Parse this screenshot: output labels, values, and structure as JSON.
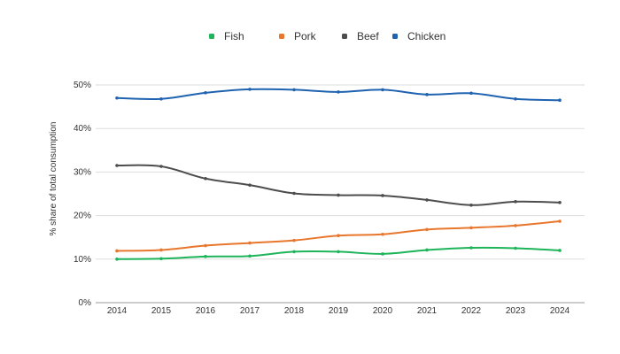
{
  "chart_data": {
    "type": "line",
    "x": [
      "2014",
      "2015",
      "2016",
      "2017",
      "2018",
      "2019",
      "2020",
      "2021",
      "2022",
      "2023",
      "2024"
    ],
    "series": [
      {
        "name": "Fish",
        "color": "#1db45a",
        "values": [
          10.0,
          10.1,
          10.6,
          10.7,
          11.7,
          11.7,
          11.2,
          12.1,
          12.6,
          12.5,
          12.0
        ]
      },
      {
        "name": "Pork",
        "color": "#e8762c",
        "values": [
          11.9,
          12.1,
          13.1,
          13.7,
          14.3,
          15.4,
          15.7,
          16.8,
          17.2,
          17.7,
          18.7
        ]
      },
      {
        "name": "Beef",
        "color": "#4d4d4d",
        "values": [
          31.5,
          31.3,
          28.5,
          27.0,
          25.1,
          24.7,
          24.6,
          23.6,
          22.4,
          23.2,
          23.0
        ]
      },
      {
        "name": "Chicken",
        "color": "#1f63b0",
        "values": [
          47.0,
          46.8,
          48.2,
          49.0,
          48.9,
          48.4,
          48.9,
          47.8,
          48.1,
          46.8,
          46.5
        ]
      }
    ],
    "ylabel": "% share of total consumption",
    "xlabel": "",
    "yticks": [
      "0%",
      "10%",
      "20%",
      "30%",
      "40%",
      "50%"
    ],
    "ylim": [
      0,
      50
    ],
    "grid": true,
    "legend_position": "top-center"
  }
}
